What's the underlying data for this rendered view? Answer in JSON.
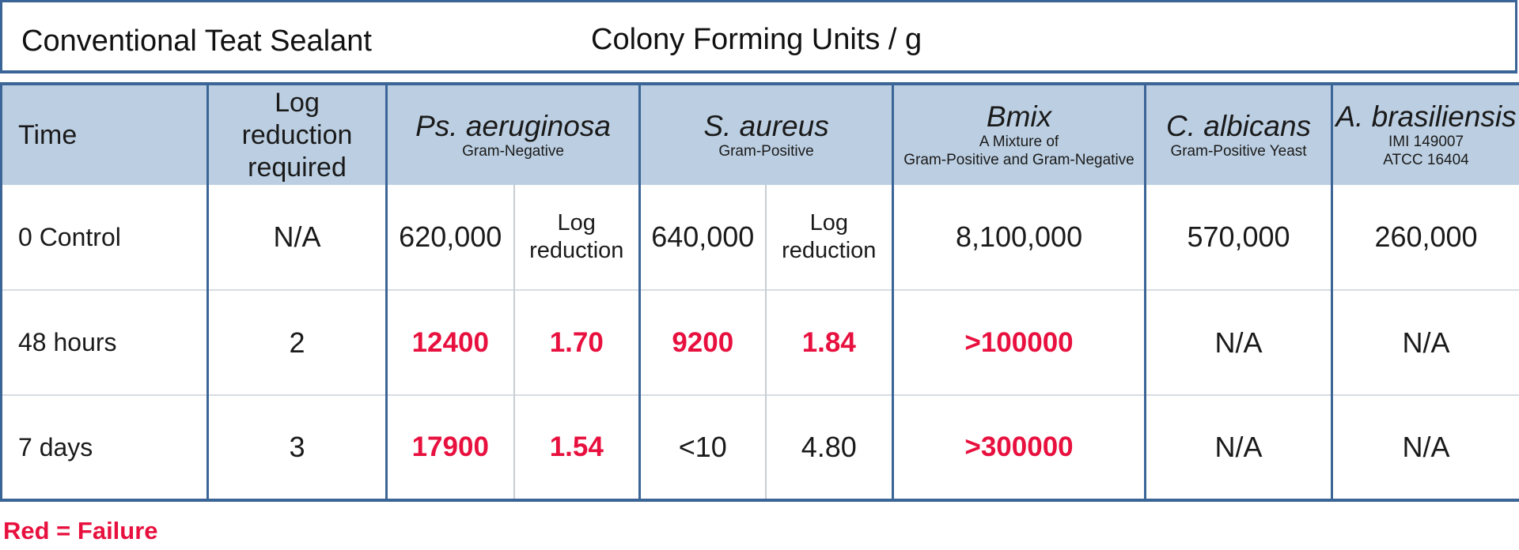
{
  "header": {
    "left_title": "Conventional Teat Sealant",
    "center_title": "Colony Forming Units / g"
  },
  "columns": {
    "time": "Time",
    "log_required": "Log reduction required",
    "ps": {
      "name": "Ps. aeruginosa",
      "sub": "Gram-Negative"
    },
    "sa": {
      "name": "S. aureus",
      "sub": "Gram-Positive"
    },
    "bmix": {
      "name": "Bmix",
      "sub1": "A Mixture of",
      "sub2": "Gram-Positive and Gram-Negative"
    },
    "ca": {
      "name": "C. albicans",
      "sub": "Gram-Positive Yeast"
    },
    "ab": {
      "name": "A. brasiliensis",
      "sub1": "IMI 149007",
      "sub2": "ATCC 16404"
    }
  },
  "rows": [
    {
      "time": "0 Control",
      "log_required": "N/A",
      "ps_cfu": "620,000",
      "ps_log": "Log reduction",
      "sa_cfu": "640,000",
      "sa_log": "Log reduction",
      "bmix": "8,100,000",
      "ca": "570,000",
      "ab": "260,000"
    },
    {
      "time": "48 hours",
      "log_required": "2",
      "ps_cfu": "12400",
      "ps_log": "1.70",
      "sa_cfu": "9200",
      "sa_log": "1.84",
      "bmix": ">100000",
      "ca": "N/A",
      "ab": "N/A"
    },
    {
      "time": "7 days",
      "log_required": "3",
      "ps_cfu": "17900",
      "ps_log": "1.54",
      "sa_cfu": "<10",
      "sa_log": "4.80",
      "bmix": ">300000",
      "ca": "N/A",
      "ab": "N/A"
    }
  ],
  "legend": "Red = Failure",
  "colors": {
    "failure": "#e8103e",
    "header_fill": "#bccfe2",
    "border": "#3c6597"
  }
}
